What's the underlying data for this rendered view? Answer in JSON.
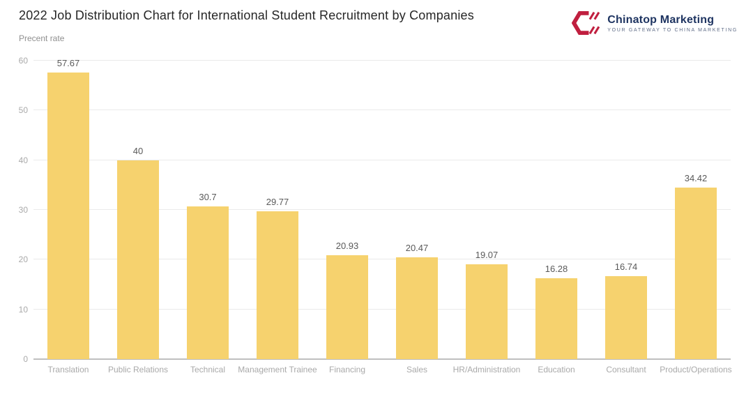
{
  "header": {
    "title": "2022 Job Distribution Chart for International Student Recruitment by Companies",
    "y_axis_label": "Precent rate"
  },
  "logo": {
    "name": "Chinatop Marketing",
    "tagline": "YOUR GATEWAY TO CHINA MARKETING",
    "icon": "hexagon-c-logo-icon",
    "colors": {
      "icon_red": "#C01F3F",
      "name_navy": "#1E3461",
      "tagline_gray": "#5F6C87"
    }
  },
  "chart_data": {
    "type": "bar",
    "title": "2022 Job Distribution Chart for International Student Recruitment by Companies",
    "xlabel": "",
    "ylabel": "Precent rate",
    "categories": [
      "Translation",
      "Public Relations",
      "Technical",
      "Management Trainee",
      "Financing",
      "Sales",
      "HR/Administration",
      "Education",
      "Consultant",
      "Product/Operations"
    ],
    "values": [
      57.67,
      40,
      30.7,
      29.77,
      20.93,
      20.47,
      19.07,
      16.28,
      16.74,
      34.42
    ],
    "value_labels": [
      "57.67",
      "40",
      "30.7",
      "29.77",
      "20.93",
      "20.47",
      "19.07",
      "16.28",
      "16.74",
      "34.42"
    ],
    "ylim": [
      0,
      60
    ],
    "yticks": [
      0,
      10,
      20,
      30,
      40,
      50,
      60
    ],
    "grid": true,
    "legend": false,
    "bar_color": "#F6D26E",
    "gridline_color": "#EAEAEA",
    "axis_line_color": "#BFBFBF",
    "tick_label_color": "#A9A9A9",
    "value_label_color": "#595959"
  }
}
